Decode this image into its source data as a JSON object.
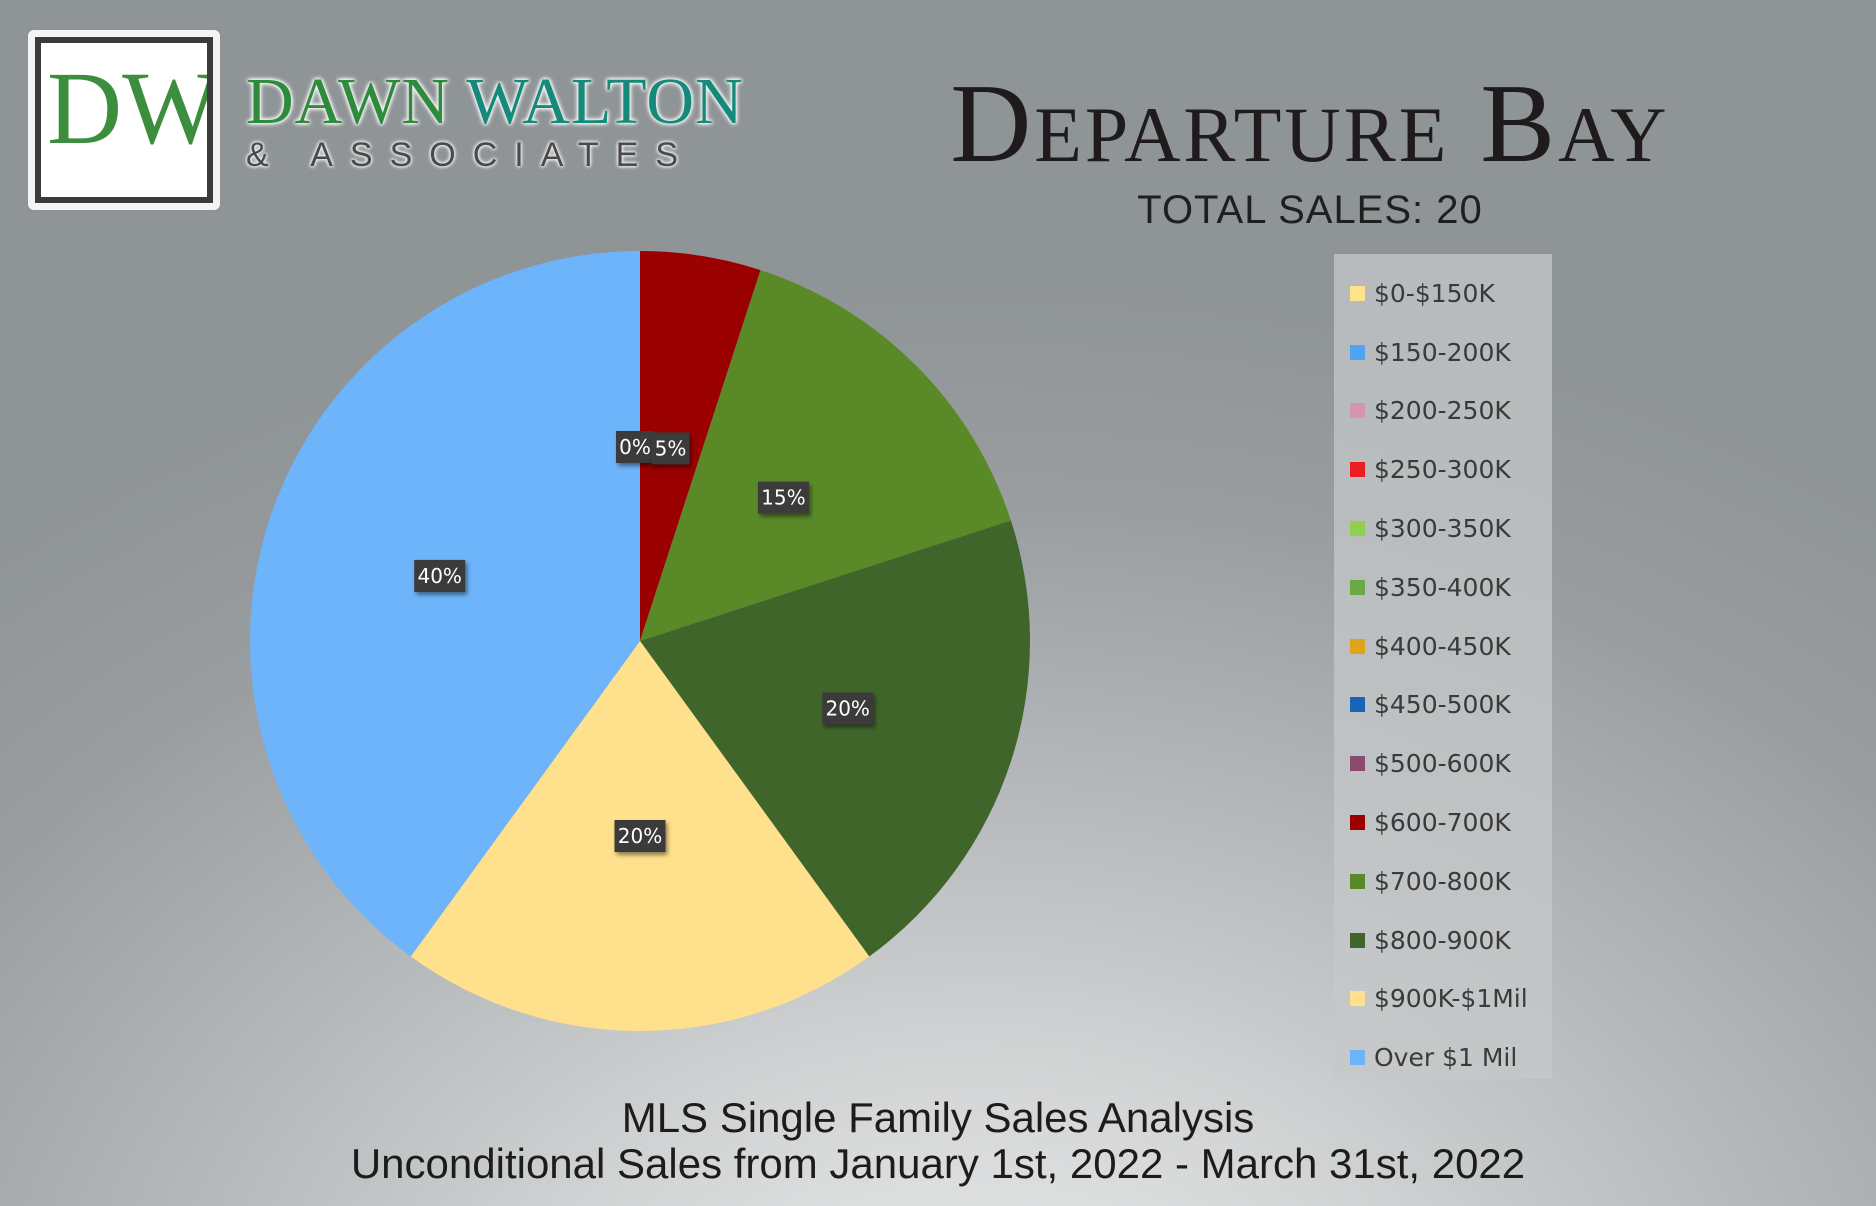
{
  "logo": {
    "monogram": "DW",
    "name_part1": "DAWN",
    "name_part2": "WALTON",
    "subtitle": "& ASSOCIATES"
  },
  "title": "Departure Bay",
  "total_sales": "TOTAL SALES: 20",
  "footer": {
    "line1": "MLS Single Family Sales Analysis",
    "line2": "Unconditional Sales from January 1st, 2022 - March 31st, 2022"
  },
  "chart_data": {
    "type": "pie",
    "title": "Departure Bay",
    "categories": [
      "$0-$150K",
      "$150-200K",
      "$200-250K",
      "$250-300K",
      "$300-350K",
      "$350-400K",
      "$400-450K",
      "$450-500K",
      "$500-600K",
      "$600-700K",
      "$700-800K",
      "$800-900K",
      "$900K-$1Mil",
      "Over $1 Mil"
    ],
    "values": [
      0,
      0,
      0,
      0,
      0,
      0,
      0,
      0,
      0,
      5,
      15,
      20,
      20,
      40
    ],
    "labels": [
      "0%",
      "0%",
      "0%",
      "0%",
      "0%",
      "0%",
      "0%",
      "0%",
      "0%",
      "5%",
      "15%",
      "20%",
      "20%",
      "40%"
    ],
    "colors": [
      "#fde38a",
      "#4fa4f0",
      "#d596b4",
      "#ee1d23",
      "#8fd14f",
      "#6aaa45",
      "#e0a41c",
      "#1765b7",
      "#8a4b6e",
      "#9b0000",
      "#5a8a28",
      "#40652a",
      "#ffe08c",
      "#6db4fa"
    ],
    "value_unit": "percent",
    "legend": "right"
  }
}
